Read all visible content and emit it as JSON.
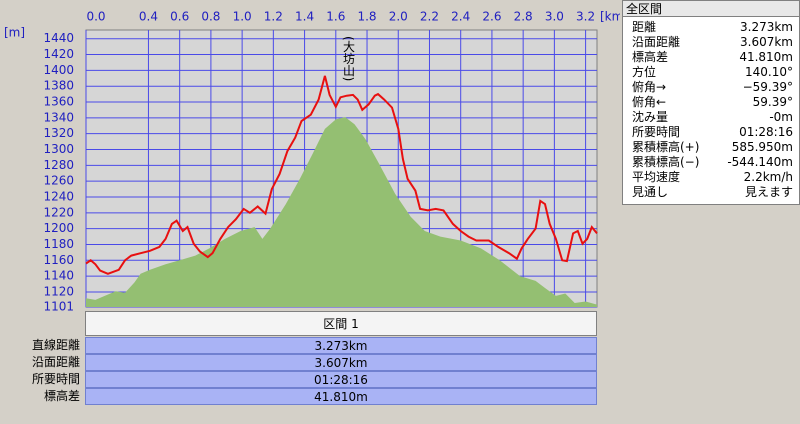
{
  "chart_data": {
    "type": "line",
    "y_unit_label": "[m]",
    "x_unit_label": "[km]",
    "annotation": "(大坊山)",
    "xlim": [
      0,
      3.273
    ],
    "xticks": [
      {
        "value": 0,
        "label": "0.0"
      },
      0.4,
      0.6,
      0.8,
      {
        "value": 1,
        "label": "1.0"
      },
      1.2,
      1.4,
      1.6,
      1.8,
      {
        "value": 2,
        "label": "2.0"
      },
      2.2,
      2.4,
      2.6,
      2.8,
      {
        "value": 3,
        "label": "3.0"
      },
      3.2
    ],
    "ylim": [
      1101,
      1451
    ],
    "yticks": [
      1101,
      1120,
      1140,
      1160,
      1180,
      1200,
      1220,
      1240,
      1260,
      1280,
      1300,
      1320,
      1340,
      1360,
      1380,
      1400,
      1420,
      1440
    ],
    "grid": true,
    "series": [
      {
        "type": "area",
        "color": "#94bf72",
        "x": [
          0,
          0.06,
          0.12,
          0.19,
          0.25,
          0.31,
          0.35,
          0.41,
          0.51,
          0.6,
          0.7,
          0.79,
          0.89,
          0.99,
          1.08,
          1.13,
          1.18,
          1.28,
          1.37,
          1.45,
          1.53,
          1.6,
          1.66,
          1.72,
          1.79,
          1.88,
          1.98,
          2.08,
          2.17,
          2.27,
          2.4,
          2.53,
          2.65,
          2.78,
          2.88,
          2.94,
          3.01,
          3.07,
          3.13,
          3.2,
          3.273
        ],
        "values": [
          1112,
          1110,
          1115,
          1121,
          1119,
          1132,
          1143,
          1148,
          1155,
          1160,
          1166,
          1175,
          1187,
          1197,
          1202,
          1187,
          1200,
          1231,
          1263,
          1294,
          1326,
          1338,
          1341,
          1332,
          1313,
          1281,
          1244,
          1215,
          1197,
          1190,
          1185,
          1175,
          1160,
          1140,
          1134,
          1125,
          1115,
          1118,
          1106,
          1108,
          1104
        ]
      },
      {
        "type": "line",
        "color": "#e81010",
        "x": [
          0,
          0.03,
          0.06,
          0.09,
          0.14,
          0.21,
          0.25,
          0.29,
          0.35,
          0.41,
          0.47,
          0.51,
          0.55,
          0.58,
          0.62,
          0.65,
          0.69,
          0.73,
          0.78,
          0.81,
          0.86,
          0.91,
          0.96,
          1.01,
          1.05,
          1.1,
          1.15,
          1.19,
          1.24,
          1.29,
          1.34,
          1.38,
          1.44,
          1.49,
          1.53,
          1.56,
          1.6,
          1.63,
          1.67,
          1.71,
          1.74,
          1.77,
          1.81,
          1.85,
          1.87,
          1.91,
          1.96,
          2.0,
          2.03,
          2.06,
          2.11,
          2.14,
          2.19,
          2.24,
          2.29,
          2.35,
          2.4,
          2.45,
          2.5,
          2.58,
          2.64,
          2.71,
          2.76,
          2.79,
          2.83,
          2.88,
          2.91,
          2.94,
          2.97,
          3.01,
          3.05,
          3.08,
          3.12,
          3.15,
          3.18,
          3.21,
          3.24,
          3.273
        ],
        "values": [
          1156,
          1160,
          1155,
          1147,
          1143,
          1148,
          1160,
          1166,
          1169,
          1172,
          1177,
          1187,
          1206,
          1210,
          1197,
          1202,
          1181,
          1171,
          1164,
          1169,
          1187,
          1202,
          1212,
          1225,
          1220,
          1228,
          1219,
          1250,
          1269,
          1298,
          1315,
          1336,
          1344,
          1363,
          1393,
          1369,
          1354,
          1366,
          1368,
          1369,
          1363,
          1350,
          1357,
          1368,
          1370,
          1363,
          1353,
          1326,
          1288,
          1263,
          1248,
          1225,
          1223,
          1225,
          1223,
          1206,
          1197,
          1190,
          1185,
          1185,
          1177,
          1169,
          1162,
          1175,
          1187,
          1200,
          1235,
          1231,
          1206,
          1187,
          1160,
          1159,
          1194,
          1197,
          1181,
          1187,
          1202,
          1194
        ]
      }
    ]
  },
  "info_panel": {
    "title": "全区間",
    "rows": [
      [
        "距離",
        "3.273km"
      ],
      [
        "沿面距離",
        "3.607km"
      ],
      [
        "標高差",
        "41.810m"
      ],
      [
        "方位",
        "140.10°"
      ],
      [
        "俯角→",
        "−59.39°"
      ],
      [
        "俯角←",
        "59.39°"
      ],
      [
        "沈み量",
        "-0m"
      ],
      [
        "所要時間",
        "01:28:16"
      ],
      [
        "累積標高(+)",
        "585.950m"
      ],
      [
        "累積標高(−)",
        "-544.140m"
      ],
      [
        "平均速度",
        "2.2km/h"
      ],
      [
        "見通し",
        "見えます"
      ]
    ]
  },
  "table": {
    "header": "区間 1",
    "rows": [
      [
        "直線距離",
        "3.273km"
      ],
      [
        "沿面距離",
        "3.607km"
      ],
      [
        "所要時間",
        "01:28:16"
      ],
      [
        "標高差",
        "41.810m"
      ]
    ]
  }
}
